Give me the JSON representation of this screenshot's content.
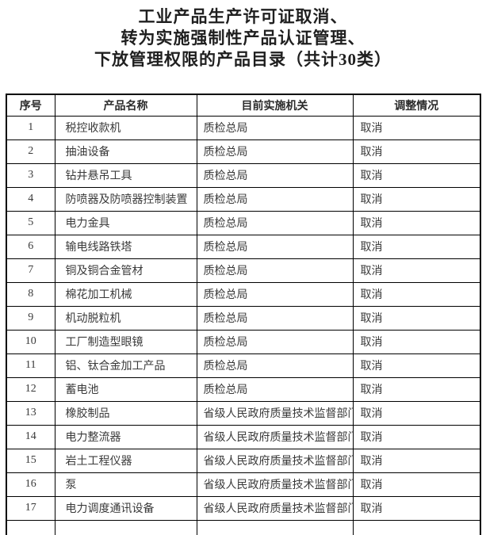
{
  "title": {
    "lines": [
      "工业产品生产许可证取消、",
      "转为实施强制性产品认证管理、",
      "下放管理权限的产品目录（共计30类）"
    ]
  },
  "table": {
    "headers": [
      "序号",
      "产品名称",
      "目前实施机关",
      "调整情况"
    ],
    "rows": [
      {
        "no": "1",
        "product": "税控收款机",
        "agency": "质检总局",
        "adjustment": "取消"
      },
      {
        "no": "2",
        "product": "抽油设备",
        "agency": "质检总局",
        "adjustment": "取消"
      },
      {
        "no": "3",
        "product": "钻井悬吊工具",
        "agency": "质检总局",
        "adjustment": "取消"
      },
      {
        "no": "4",
        "product": "防喷器及防喷器控制装置",
        "agency": "质检总局",
        "adjustment": "取消"
      },
      {
        "no": "5",
        "product": "电力金具",
        "agency": "质检总局",
        "adjustment": "取消"
      },
      {
        "no": "6",
        "product": "输电线路铁塔",
        "agency": "质检总局",
        "adjustment": "取消"
      },
      {
        "no": "7",
        "product": "铜及铜合金管材",
        "agency": "质检总局",
        "adjustment": "取消"
      },
      {
        "no": "8",
        "product": "棉花加工机械",
        "agency": "质检总局",
        "adjustment": "取消"
      },
      {
        "no": "9",
        "product": "机动脱粒机",
        "agency": "质检总局",
        "adjustment": "取消"
      },
      {
        "no": "10",
        "product": "工厂制造型眼镜",
        "agency": "质检总局",
        "adjustment": "取消"
      },
      {
        "no": "11",
        "product": "铝、钛合金加工产品",
        "agency": "质检总局",
        "adjustment": "取消"
      },
      {
        "no": "12",
        "product": "蓄电池",
        "agency": "质检总局",
        "adjustment": "取消"
      },
      {
        "no": "13",
        "product": "橡胶制品",
        "agency": "省级人民政府质量技术监督部门",
        "adjustment": "取消"
      },
      {
        "no": "14",
        "product": "电力整流器",
        "agency": "省级人民政府质量技术监督部门",
        "adjustment": "取消"
      },
      {
        "no": "15",
        "product": "岩土工程仪器",
        "agency": "省级人民政府质量技术监督部门",
        "adjustment": "取消"
      },
      {
        "no": "16",
        "product": "泵",
        "agency": "省级人民政府质量技术监督部门",
        "adjustment": "取消"
      },
      {
        "no": "17",
        "product": "电力调度通讯设备",
        "agency": "省级人民政府质量技术监督部门",
        "adjustment": "取消"
      }
    ]
  },
  "colors": {
    "background": "#ffffff",
    "border": "#000000",
    "body_text": "#3a3a3a",
    "title_text": "#1f1f1f"
  }
}
